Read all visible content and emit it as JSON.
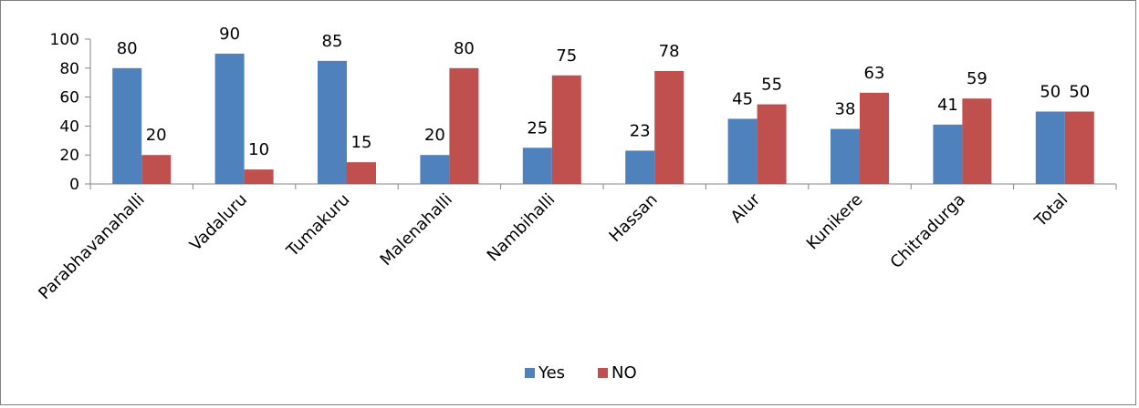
{
  "chart_data": {
    "type": "bar",
    "categories": [
      "Parabhavanahalli",
      "Vadaluru",
      "Tumakuru",
      "Malenahalli",
      "Nambihalli",
      "Hassan",
      "Alur",
      "Kunikere",
      "Chitradurga",
      "Total"
    ],
    "series": [
      {
        "name": "Yes",
        "values": [
          80,
          90,
          85,
          20,
          25,
          23,
          45,
          38,
          41,
          50
        ],
        "color": "#4F81BD"
      },
      {
        "name": "NO",
        "values": [
          20,
          10,
          15,
          80,
          75,
          78,
          55,
          63,
          59,
          50
        ],
        "color": "#C0504D"
      }
    ],
    "title": "",
    "xlabel": "",
    "ylabel": "",
    "ylim": [
      0,
      100
    ],
    "yticks": [
      0,
      20,
      40,
      60,
      80,
      100
    ],
    "grid": false,
    "legend_position": "bottom",
    "data_labels": true
  }
}
